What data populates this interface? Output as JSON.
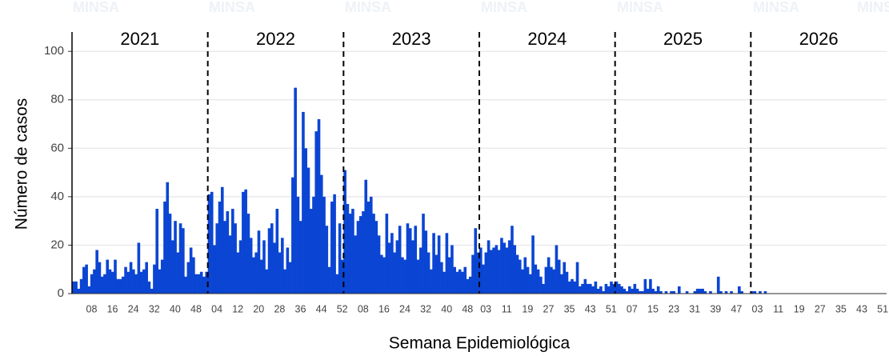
{
  "chart_data": {
    "type": "bar",
    "watermark": "MINSA",
    "ylabel": "Número de casos",
    "xlabel": "Semana Epidemiológica",
    "color": "#0b45d3",
    "ylim": [
      0,
      108
    ],
    "yticks": [
      0,
      20,
      40,
      60,
      80,
      100
    ],
    "grid": true,
    "years": [
      {
        "label": "2021",
        "categories": [
          null,
          null,
          null,
          null,
          null,
          null,
          null,
          "08",
          null,
          null,
          null,
          null,
          null,
          null,
          null,
          "16",
          null,
          null,
          null,
          null,
          null,
          null,
          null,
          "24",
          null,
          null,
          null,
          null,
          null,
          null,
          null,
          "32",
          null,
          null,
          null,
          null,
          null,
          null,
          null,
          "40",
          null,
          null,
          null,
          null,
          null,
          null,
          null,
          "48",
          null,
          null,
          null,
          null
        ],
        "values": [
          5,
          5,
          2,
          6,
          11,
          12,
          3,
          8,
          10,
          18,
          13,
          7,
          8,
          14,
          10,
          9,
          14,
          6,
          6,
          7,
          11,
          9,
          13,
          10,
          8,
          21,
          9,
          10,
          13,
          5,
          2,
          12,
          35,
          10,
          14,
          38,
          46,
          33,
          22,
          30,
          17,
          29,
          27,
          7,
          13,
          19,
          15,
          8,
          8,
          9,
          7,
          9
        ]
      },
      {
        "label": "2022",
        "categories": [
          null,
          null,
          null,
          "04",
          null,
          null,
          null,
          null,
          null,
          null,
          null,
          "12",
          null,
          null,
          null,
          null,
          null,
          null,
          null,
          "20",
          null,
          null,
          null,
          null,
          null,
          null,
          null,
          "28",
          null,
          null,
          null,
          null,
          null,
          null,
          null,
          "36",
          null,
          null,
          null,
          null,
          null,
          null,
          null,
          "44",
          null,
          null,
          null,
          null,
          null,
          null,
          null,
          "52"
        ],
        "values": [
          41,
          42,
          20,
          29,
          38,
          44,
          30,
          34,
          24,
          35,
          29,
          17,
          22,
          42,
          43,
          33,
          23,
          15,
          17,
          26,
          14,
          22,
          10,
          27,
          29,
          21,
          35,
          17,
          23,
          10,
          19,
          13,
          48,
          85,
          40,
          30,
          75,
          60,
          52,
          35,
          40,
          67,
          72,
          49,
          40,
          28,
          11,
          38,
          41,
          8,
          29,
          14
        ]
      },
      {
        "label": "2023",
        "categories": [
          null,
          null,
          null,
          null,
          null,
          null,
          null,
          "08",
          null,
          null,
          null,
          null,
          null,
          null,
          null,
          "16",
          null,
          null,
          null,
          null,
          null,
          null,
          null,
          "24",
          null,
          null,
          null,
          null,
          null,
          null,
          null,
          "32",
          null,
          null,
          null,
          null,
          null,
          null,
          null,
          "40",
          null,
          null,
          null,
          null,
          null,
          null,
          null,
          "48",
          null,
          null,
          null,
          null
        ],
        "values": [
          51,
          37,
          33,
          35,
          24,
          30,
          32,
          34,
          47,
          38,
          40,
          33,
          30,
          24,
          16,
          15,
          33,
          21,
          25,
          17,
          22,
          28,
          15,
          14,
          29,
          27,
          22,
          28,
          14,
          19,
          33,
          26,
          17,
          10,
          25,
          16,
          24,
          13,
          9,
          25,
          15,
          20,
          11,
          9,
          10,
          9,
          11,
          6,
          7,
          16,
          27,
          17
        ]
      },
      {
        "label": "2024",
        "categories": [
          null,
          null,
          "03",
          null,
          null,
          null,
          null,
          null,
          null,
          null,
          "11",
          null,
          null,
          null,
          null,
          null,
          null,
          null,
          "19",
          null,
          null,
          null,
          null,
          null,
          null,
          null,
          "27",
          null,
          null,
          null,
          null,
          null,
          null,
          null,
          "35",
          null,
          null,
          null,
          null,
          null,
          null,
          null,
          "43",
          null,
          null,
          null,
          null,
          null,
          null,
          null,
          "51",
          null
        ],
        "values": [
          19,
          12,
          17,
          22,
          18,
          19,
          20,
          18,
          23,
          21,
          19,
          22,
          28,
          20,
          16,
          14,
          10,
          15,
          11,
          8,
          24,
          12,
          10,
          7,
          4,
          11,
          15,
          11,
          10,
          20,
          14,
          8,
          13,
          9,
          5,
          6,
          5,
          13,
          3,
          4,
          6,
          4,
          4,
          3,
          5,
          2,
          3,
          1,
          4,
          3,
          5,
          4
        ]
      },
      {
        "label": "2025",
        "categories": [
          null,
          null,
          null,
          null,
          null,
          null,
          "07",
          null,
          null,
          null,
          null,
          null,
          null,
          null,
          "15",
          null,
          null,
          null,
          null,
          null,
          null,
          null,
          "23",
          null,
          null,
          null,
          null,
          null,
          null,
          null,
          "31",
          null,
          null,
          null,
          null,
          null,
          null,
          null,
          "39",
          null,
          null,
          null,
          null,
          null,
          null,
          null,
          "47",
          null,
          null,
          null,
          null,
          null
        ],
        "values": [
          5,
          4,
          3,
          2,
          1,
          3,
          2,
          4,
          2,
          1,
          1,
          6,
          2,
          6,
          2,
          1,
          3,
          1,
          0,
          1,
          0,
          1,
          1,
          0,
          3,
          0,
          0,
          1,
          0,
          0,
          1,
          2,
          2,
          2,
          1,
          0,
          1,
          0,
          0,
          7,
          1,
          0,
          1,
          0,
          1,
          0,
          0,
          3,
          1,
          0,
          0,
          0
        ]
      },
      {
        "label": "2026",
        "categories": [
          null,
          null,
          "03",
          null,
          null,
          null,
          null,
          null,
          null,
          null,
          "11",
          null,
          null,
          null,
          null,
          null,
          null,
          null,
          "19",
          null,
          null,
          null,
          null,
          null,
          null,
          null,
          "27",
          null,
          null,
          null,
          null,
          null,
          null,
          null,
          "35",
          null,
          null,
          null,
          null,
          null,
          null,
          null,
          "43",
          null,
          null,
          null,
          null,
          null,
          null,
          null,
          "51",
          null
        ],
        "values": [
          1,
          1,
          0,
          1,
          0,
          1,
          0,
          0,
          0,
          0,
          0,
          0,
          0,
          0,
          0,
          0,
          0,
          0,
          0,
          0,
          0,
          0,
          0,
          0,
          0,
          0,
          0,
          0,
          0,
          0,
          0,
          0,
          0,
          0,
          0,
          0,
          0,
          0,
          0,
          0,
          0,
          0,
          0,
          0,
          0,
          0,
          0,
          0,
          0,
          0,
          0,
          0
        ]
      }
    ]
  }
}
